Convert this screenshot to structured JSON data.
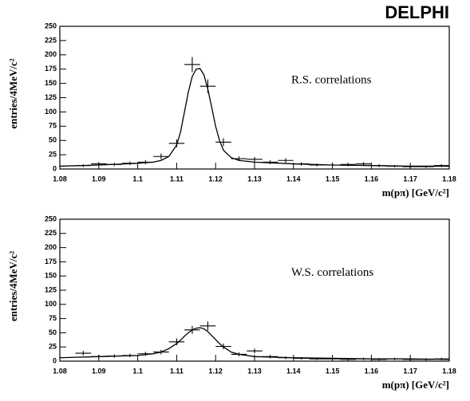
{
  "chart_data": [
    {
      "type": "errorbar",
      "title": "DELPHI",
      "annotation": "R.S. correlations",
      "x_label": "m(pπ)  [GeV/c²]",
      "y_label": "entries/4MeV/c²",
      "xlim": [
        1.08,
        1.18
      ],
      "ylim": [
        0,
        250
      ],
      "xticks": [
        1.08,
        1.09,
        1.1,
        1.11,
        1.12,
        1.13,
        1.14,
        1.15,
        1.16,
        1.17,
        1.18
      ],
      "yticks": [
        0,
        25,
        50,
        75,
        100,
        125,
        150,
        175,
        200,
        225,
        250
      ],
      "bin_width": 0.004,
      "points": {
        "x": [
          1.086,
          1.09,
          1.094,
          1.098,
          1.102,
          1.106,
          1.11,
          1.114,
          1.118,
          1.122,
          1.126,
          1.13,
          1.134,
          1.138,
          1.142,
          1.146,
          1.15,
          1.154,
          1.158,
          1.162,
          1.166,
          1.17,
          1.174,
          1.178
        ],
        "values": [
          6,
          9,
          8,
          10,
          12,
          22,
          45,
          183,
          145,
          47,
          18,
          17,
          12,
          15,
          9,
          7,
          7,
          8,
          9,
          6,
          5,
          4,
          4,
          6
        ],
        "errors": [
          2.5,
          3,
          3,
          3,
          3.5,
          5,
          7,
          13,
          12,
          7,
          4,
          4,
          3.5,
          4,
          3,
          2.5,
          2.5,
          3,
          3,
          2.5,
          2,
          2,
          2,
          2.5
        ]
      },
      "fit": {
        "x": [
          1.08,
          1.09,
          1.1,
          1.104,
          1.106,
          1.108,
          1.11,
          1.111,
          1.112,
          1.113,
          1.114,
          1.115,
          1.116,
          1.117,
          1.118,
          1.119,
          1.12,
          1.121,
          1.122,
          1.124,
          1.126,
          1.13,
          1.14,
          1.15,
          1.16,
          1.17,
          1.18
        ],
        "values": [
          5,
          7,
          10,
          12,
          15,
          22,
          42,
          65,
          100,
          135,
          162,
          175,
          176,
          165,
          140,
          108,
          75,
          50,
          33,
          20,
          15,
          12,
          9,
          7,
          6,
          5,
          5
        ]
      }
    },
    {
      "type": "errorbar",
      "annotation": "W.S. correlations",
      "x_label": "m(pπ)  [GeV/c²]",
      "y_label": "entries/4MeV/c²",
      "xlim": [
        1.08,
        1.18
      ],
      "ylim": [
        0,
        250
      ],
      "xticks": [
        1.08,
        1.09,
        1.1,
        1.11,
        1.12,
        1.13,
        1.14,
        1.15,
        1.16,
        1.17,
        1.18
      ],
      "yticks": [
        0,
        25,
        50,
        75,
        100,
        125,
        150,
        175,
        200,
        225,
        250
      ],
      "bin_width": 0.004,
      "points": {
        "x": [
          1.086,
          1.09,
          1.094,
          1.098,
          1.102,
          1.106,
          1.11,
          1.114,
          1.118,
          1.122,
          1.126,
          1.13,
          1.134,
          1.138,
          1.142,
          1.146,
          1.15,
          1.154,
          1.158,
          1.162,
          1.166,
          1.17,
          1.174,
          1.178
        ],
        "values": [
          14,
          8,
          9,
          10,
          13,
          16,
          34,
          55,
          62,
          26,
          12,
          18,
          8,
          6,
          5,
          4,
          4,
          3,
          4,
          3,
          4,
          3,
          3,
          4
        ],
        "errors": [
          4,
          3,
          3,
          3,
          3.5,
          4,
          6,
          7,
          8,
          5,
          3.5,
          4,
          3,
          2.5,
          2,
          2,
          2,
          2,
          2,
          2,
          2,
          2,
          2,
          2
        ]
      },
      "fit": {
        "x": [
          1.08,
          1.09,
          1.1,
          1.104,
          1.106,
          1.108,
          1.11,
          1.111,
          1.112,
          1.113,
          1.114,
          1.115,
          1.116,
          1.117,
          1.118,
          1.119,
          1.12,
          1.121,
          1.122,
          1.124,
          1.126,
          1.13,
          1.14,
          1.15,
          1.16,
          1.17,
          1.18
        ],
        "values": [
          6,
          8,
          10,
          13,
          16,
          22,
          31,
          37,
          44,
          50,
          55,
          58,
          59,
          57,
          52,
          45,
          38,
          31,
          25,
          16,
          12,
          8,
          6,
          5,
          4,
          4,
          3
        ]
      }
    }
  ]
}
